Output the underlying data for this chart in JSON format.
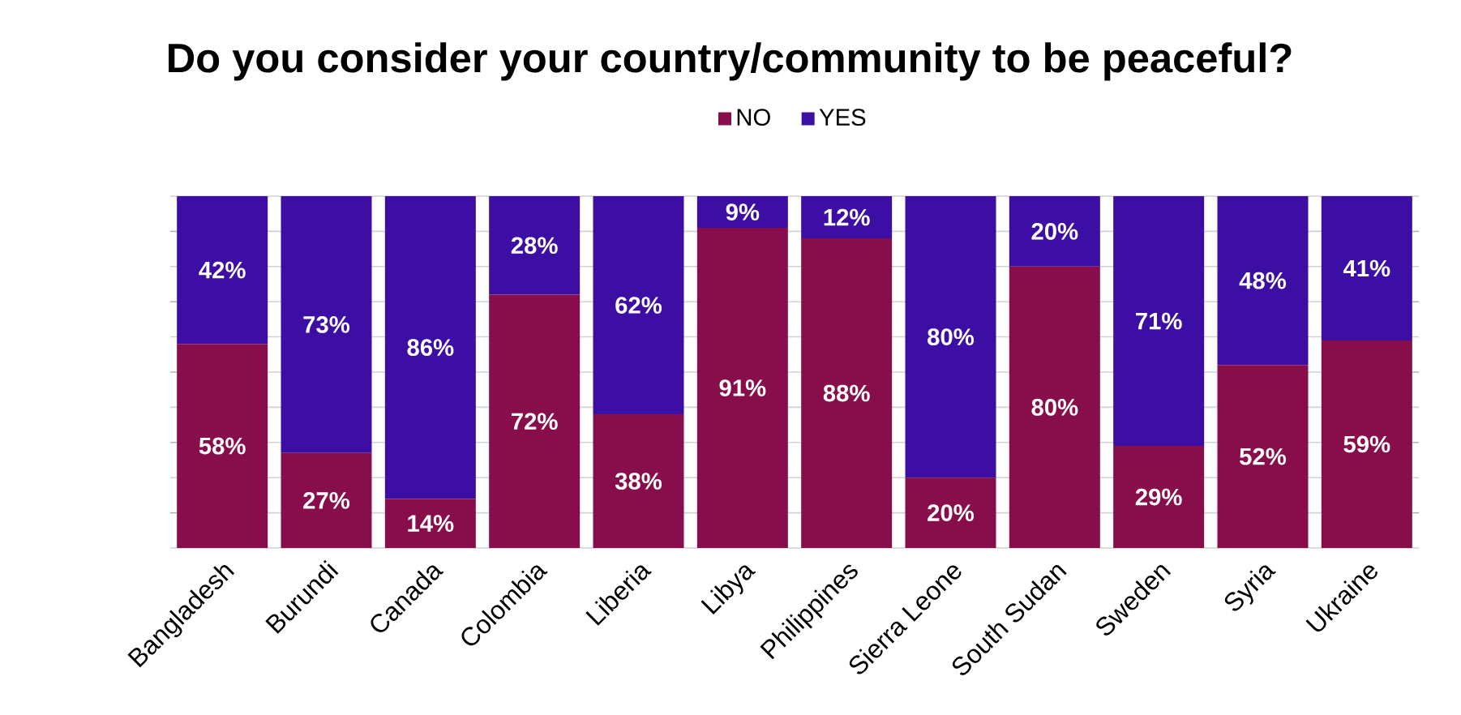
{
  "chart_data": {
    "type": "bar",
    "stacked": true,
    "title": "Do you consider your country/community to be peaceful?",
    "categories": [
      "Bangladesh",
      "Burundi",
      "Canada",
      "Colombia",
      "Liberia",
      "Libya",
      "Philippines",
      "Sierra Leone",
      "South Sudan",
      "Sweden",
      "Syria",
      "Ukraine"
    ],
    "series": [
      {
        "name": "NO",
        "color": "#870e4a",
        "values": [
          58,
          27,
          14,
          72,
          38,
          91,
          88,
          20,
          80,
          29,
          52,
          59
        ],
        "value_labels": [
          "58%",
          "27%",
          "14%",
          "72%",
          "38%",
          "91%",
          "88%",
          "20%",
          "80%",
          "29%",
          "52%",
          "59%"
        ]
      },
      {
        "name": "YES",
        "color": "#3d0ea3",
        "values": [
          42,
          73,
          86,
          28,
          62,
          9,
          12,
          80,
          20,
          71,
          48,
          41
        ],
        "value_labels": [
          "42%",
          "73%",
          "86%",
          "28%",
          "62%",
          "9%",
          "12%",
          "80%",
          "20%",
          "71%",
          "48%",
          "41%"
        ]
      }
    ],
    "tick_labels": "x",
    "grid": "y",
    "legend": "top"
  }
}
